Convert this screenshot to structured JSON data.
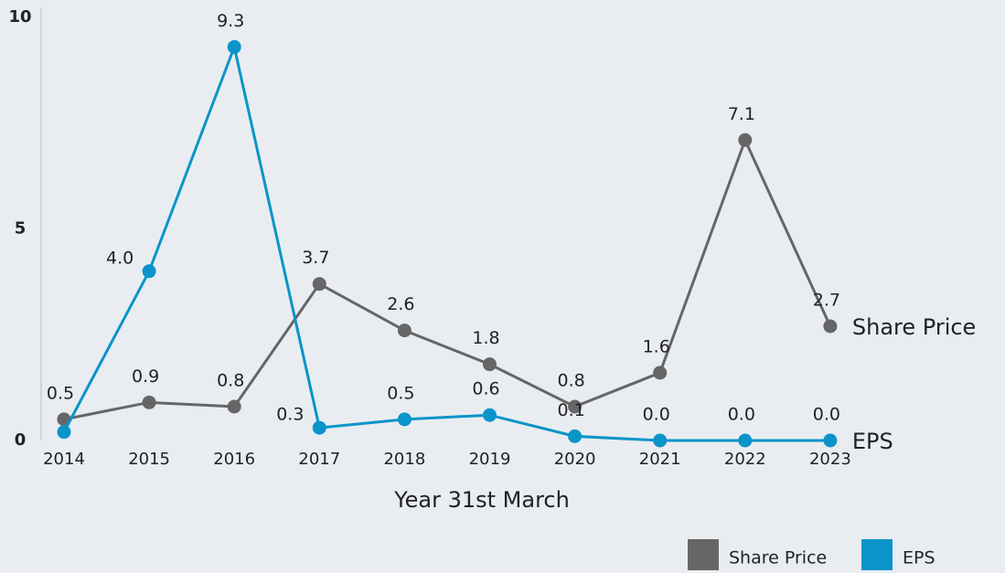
{
  "chart_data": {
    "type": "line",
    "x_label": "Year 31st March",
    "categories": [
      "2014",
      "2015",
      "2016",
      "2017",
      "2018",
      "2019",
      "2020",
      "2021",
      "2022",
      "2023"
    ],
    "series": [
      {
        "name": "Share Price",
        "color": "#666666",
        "values": [
          0.5,
          0.9,
          0.8,
          3.7,
          2.6,
          1.8,
          0.8,
          1.6,
          7.1,
          2.7
        ],
        "value_labels": [
          "0.5",
          "0.9",
          "0.8",
          "3.7",
          "2.6",
          "1.8",
          "0.8",
          "1.6",
          "7.1",
          "2.7"
        ]
      },
      {
        "name": "EPS",
        "color": "#0a94c9",
        "values": [
          0.2,
          4.0,
          9.3,
          0.3,
          0.5,
          0.6,
          0.1,
          0.0,
          0.0,
          0.0
        ],
        "value_labels": [
          null,
          "4.0",
          "9.3",
          "0.3",
          "0.5",
          "0.6",
          "0.1",
          "0.0",
          "0.0",
          "0.0"
        ]
      }
    ],
    "ylim": [
      0,
      10
    ],
    "yticks": [
      0,
      5,
      10
    ],
    "grid": false,
    "legend": "bottom-right"
  }
}
